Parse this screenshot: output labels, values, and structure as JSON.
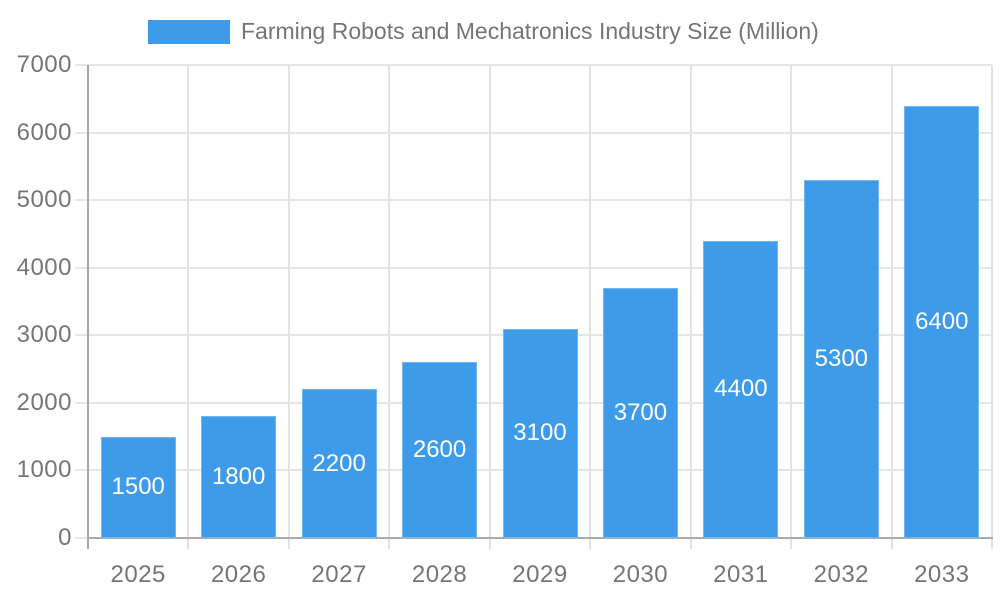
{
  "chart_data": {
    "type": "bar",
    "title": "Farming Robots and Mechatronics Industry Size (Million)",
    "categories": [
      "2025",
      "2026",
      "2027",
      "2028",
      "2029",
      "2030",
      "2031",
      "2032",
      "2033"
    ],
    "values": [
      1500,
      1800,
      2200,
      2600,
      3100,
      3700,
      4400,
      5300,
      6400
    ],
    "xlabel": "",
    "ylabel": "",
    "ylim": [
      0,
      7000
    ],
    "ytick_step": 1000,
    "ytick_labels": [
      "0",
      "1000",
      "2000",
      "3000",
      "4000",
      "5000",
      "6000",
      "7000"
    ],
    "grid": true,
    "legend_position": "top",
    "value_label_position": "inside-center",
    "colors": {
      "bar": "#3E9BEA",
      "value_label": "#FFFFFF",
      "axis_text": "#757575",
      "gridline": "#E6E6E6",
      "axis_line": "#ABABAB",
      "background": "#FFFFFF"
    }
  },
  "legend": {
    "label": "Farming Robots and Mechatronics Industry Size (Million)"
  }
}
